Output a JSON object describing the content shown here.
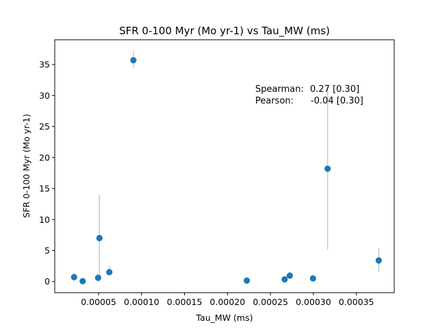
{
  "chart_data": {
    "type": "scatter",
    "title": "SFR 0-100 Myr (Mo yr-1) vs Tau_MW (ms)",
    "xlabel": "Tau_MW (ms)",
    "ylabel": "SFR 0-100 Myr (Mo yr-1)",
    "xlim": [
      -1e-06,
      0.000394
    ],
    "ylim": [
      -1.8,
      39.0
    ],
    "x_ticks": [
      5e-05,
      0.0001,
      0.00015,
      0.0002,
      0.00025,
      0.0003,
      0.00035
    ],
    "x_tick_labels": [
      "0.00005",
      "0.00010",
      "0.00015",
      "0.00020",
      "0.00025",
      "0.00030",
      "0.00035"
    ],
    "y_ticks": [
      0,
      5,
      10,
      15,
      20,
      25,
      30,
      35
    ],
    "y_tick_labels": [
      "0",
      "5",
      "10",
      "15",
      "20",
      "25",
      "30",
      "35"
    ],
    "grid": false,
    "point_color": "#1f77b4",
    "errorbar_color": "#c8c8c8",
    "points": [
      {
        "x": 2.15e-05,
        "y": 0.7,
        "yerr_low": 0.7,
        "yerr_high": 0.7
      },
      {
        "x": 3.15e-05,
        "y": 0.05,
        "yerr_low": 0.05,
        "yerr_high": 0.05
      },
      {
        "x": 4.95e-05,
        "y": 0.6,
        "yerr_low": 0.6,
        "yerr_high": 0.6
      },
      {
        "x": 5.1e-05,
        "y": 7.0,
        "yerr_low": 7.0,
        "yerr_high": 7.0
      },
      {
        "x": 6.25e-05,
        "y": 1.5,
        "yerr_low": 0.5,
        "yerr_high": 1.0
      },
      {
        "x": 9.05e-05,
        "y": 35.7,
        "yerr_low": 1.2,
        "yerr_high": 1.5
      },
      {
        "x": 0.0002225,
        "y": 0.15,
        "yerr_low": 0.15,
        "yerr_high": 0.15
      },
      {
        "x": 0.0002665,
        "y": 0.35,
        "yerr_low": 0.35,
        "yerr_high": 0.35
      },
      {
        "x": 0.0002725,
        "y": 0.95,
        "yerr_low": 0.5,
        "yerr_high": 0.6
      },
      {
        "x": 0.0002995,
        "y": 0.5,
        "yerr_low": 0.5,
        "yerr_high": 0.5
      },
      {
        "x": 0.0003165,
        "y": 18.2,
        "yerr_low": 13.0,
        "yerr_high": 13.0
      },
      {
        "x": 0.000376,
        "y": 3.4,
        "yerr_low": 1.8,
        "yerr_high": 2.0
      }
    ],
    "annotations": {
      "spearman_label": "Spearman:",
      "spearman_value": "0.27 [0.30]",
      "pearson_label": "Pearson:",
      "pearson_value": "-0.04 [0.30]"
    }
  }
}
